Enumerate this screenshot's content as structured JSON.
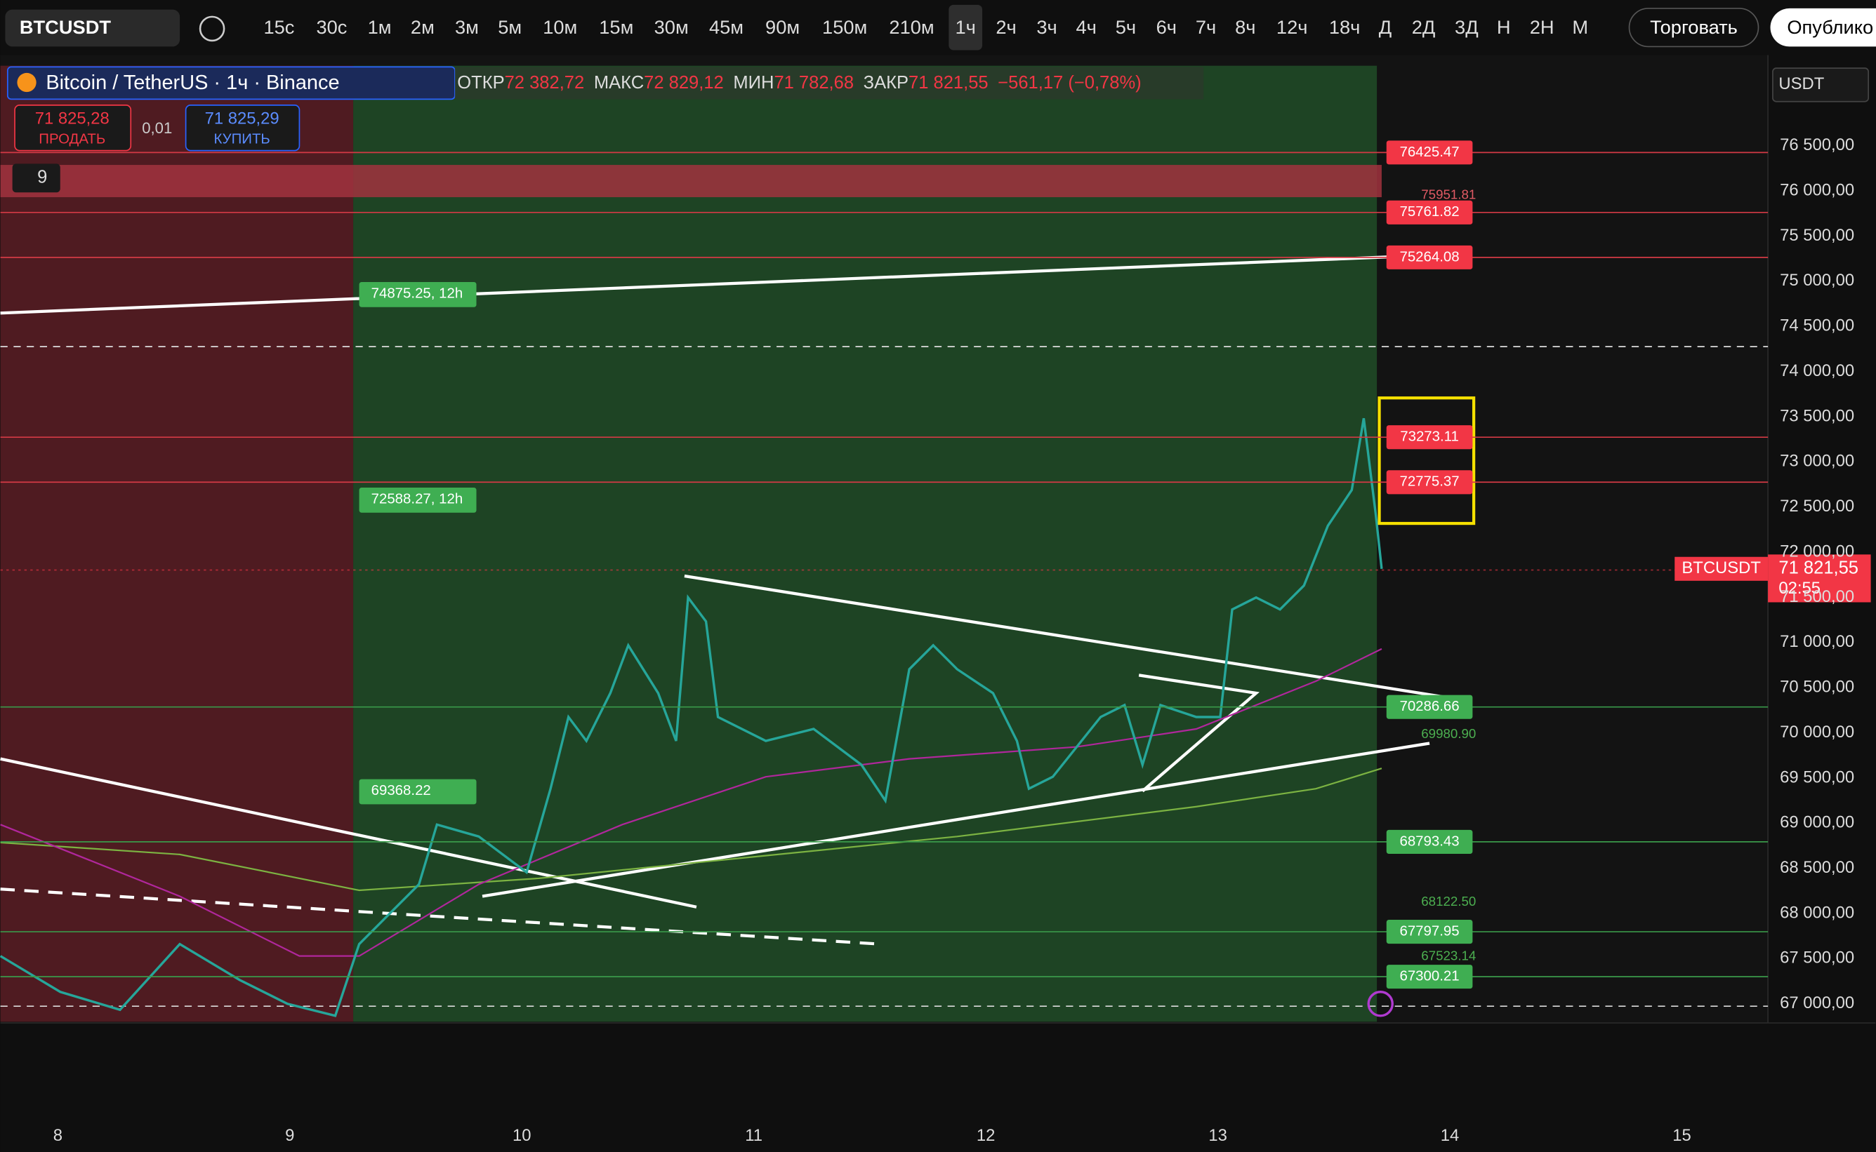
{
  "toolbar": {
    "symbol": "BTCUSDT",
    "intervals": [
      "15с",
      "30с",
      "1м",
      "2м",
      "3м",
      "5м",
      "10м",
      "15м",
      "30м",
      "45м",
      "90м",
      "150м",
      "210м",
      "1ч",
      "2ч",
      "3ч",
      "4ч",
      "5ч",
      "6ч",
      "7ч",
      "8ч",
      "12ч",
      "18ч",
      "Д",
      "2Д",
      "3Д",
      "Н",
      "2Н",
      "М"
    ],
    "trade": "Торговать",
    "publish": "Опублико"
  },
  "legend": {
    "title": "Bitcoin / TetherUS · 1ч · Binance",
    "open_label": "ОТКР",
    "open": "72 382,72",
    "high_label": "МАКС",
    "high": "72 829,12",
    "low_label": "МИН",
    "low": "71 782,68",
    "close_label": "ЗАКР",
    "close": "71 821,55",
    "change": "−561,17 (−0,78%)",
    "sell_price": "71 825,28",
    "sell": "ПРОДАТЬ",
    "spread": "0,01",
    "buy_price": "71 825,29",
    "buy": "КУПИТЬ",
    "indicators": "9"
  },
  "currency": "USDT",
  "price_axis": [
    "76 500,00",
    "76 000,00",
    "75 500,00",
    "75 000,00",
    "74 500,00",
    "74 000,00",
    "73 500,00",
    "73 000,00",
    "72 500,00",
    "72 000,00",
    "71 500,00",
    "71 000,00",
    "70 500,00",
    "70 000,00",
    "69 500,00",
    "69 000,00",
    "68 500,00",
    "68 000,00",
    "67 500,00",
    "67 000,00"
  ],
  "red_levels": [
    76425.47,
    75761.82,
    75264.08,
    73273.11,
    72775.37
  ],
  "green_levels": [
    70286.66,
    68793.43,
    67797.95,
    67300.21
  ],
  "plain_levels": [
    75951.81,
    {
      "value": 69980.9,
      "label": "69980.90"
    },
    {
      "value": 68122.5,
      "label": "68122.50"
    },
    67523.14
  ],
  "left_labels": [
    "74875.25, 12h",
    "72588.27, 12h",
    "69368.22"
  ],
  "current": {
    "symbol": "BTCUSDT",
    "price": "71 821,55",
    "countdown": "02:55"
  },
  "date_axis": [
    "8",
    "9",
    "10",
    "11",
    "12",
    "13",
    "14",
    "15"
  ]
}
